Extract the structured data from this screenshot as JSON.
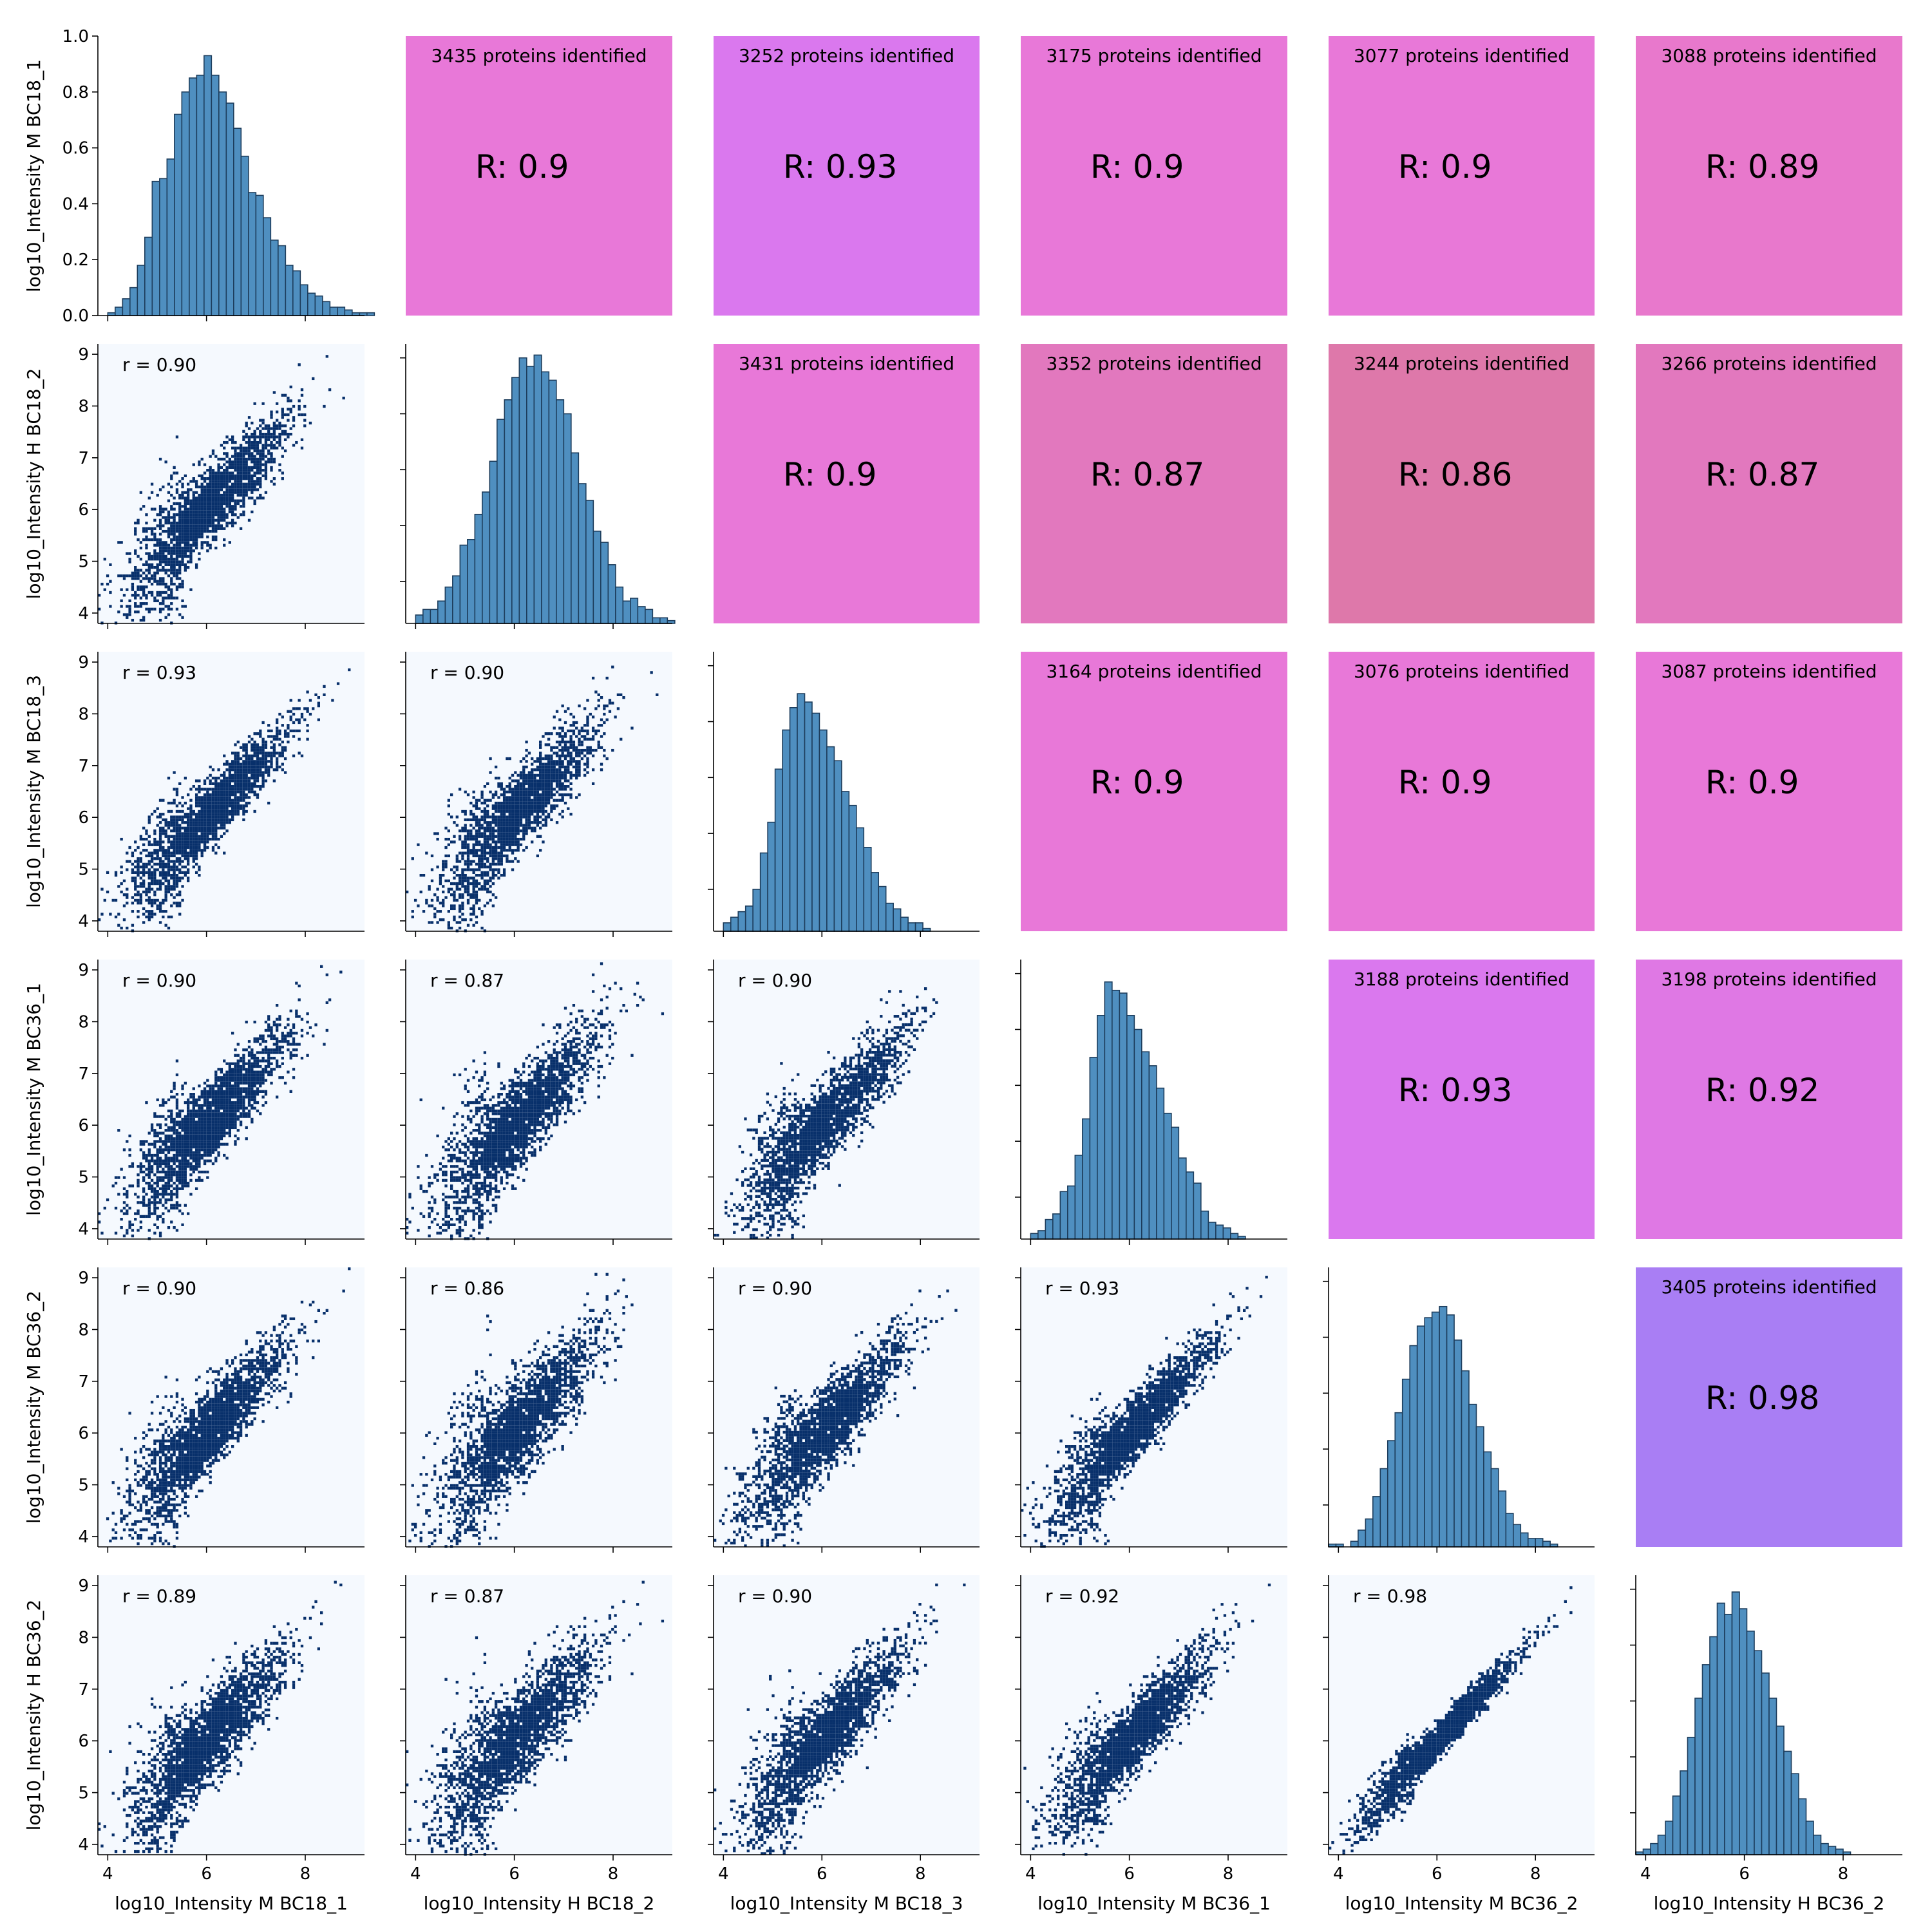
{
  "chart_data": {
    "type": "pairplot",
    "variables": [
      "log10_Intensity M BC18_1",
      "log10_Intensity H BC18_2",
      "log10_Intensity M BC18_3",
      "log10_Intensity M BC36_1",
      "log10_Intensity M BC36_2",
      "log10_Intensity H BC36_2"
    ],
    "column_labels": [
      "log10_Intensity M BC18_1",
      "log10_Intensity H BC18_2",
      "log10_Intensity M BC18_3",
      "log10_Intensity M BC36_1",
      "log10_Intensity M BC36_2",
      "log10_Intensity H BC36_2"
    ],
    "row_labels": [
      "log10_Intensity M BC18_1",
      "log10_Intensity H BC18_2",
      "log10_Intensity M BC18_3",
      "log10_Intensity M BC36_1",
      "log10_Intensity M BC36_2",
      "log10_Intensity H BC36_2"
    ],
    "axis_range": [
      3.8,
      9.2
    ],
    "x_ticks": [
      4,
      6,
      8
    ],
    "y_ticks": [
      4,
      5,
      6,
      7,
      8,
      9
    ],
    "first_hist_y_ticks": [
      "0.0",
      "0.2",
      "0.4",
      "0.6",
      "0.8",
      "1.0"
    ],
    "first_hist_ylim": [
      0,
      1.0
    ],
    "correlation": [
      [
        null,
        0.9,
        0.93,
        0.9,
        0.9,
        0.89
      ],
      [
        0.9,
        null,
        0.9,
        0.87,
        0.86,
        0.87
      ],
      [
        0.93,
        0.9,
        null,
        0.9,
        0.9,
        0.9
      ],
      [
        0.9,
        0.87,
        0.9,
        null,
        0.93,
        0.92
      ],
      [
        0.9,
        0.86,
        0.9,
        0.93,
        null,
        0.98
      ],
      [
        0.89,
        0.87,
        0.9,
        0.92,
        0.98,
        null
      ]
    ],
    "lower_labels": [
      [
        "",
        "",
        "",
        "",
        "",
        ""
      ],
      [
        "r = 0.90",
        "",
        "",
        "",
        "",
        ""
      ],
      [
        "r = 0.93",
        "r = 0.90",
        "",
        "",
        "",
        ""
      ],
      [
        "r = 0.90",
        "r = 0.87",
        "r = 0.90",
        "",
        "",
        ""
      ],
      [
        "r = 0.90",
        "r = 0.86",
        "r = 0.90",
        "r = 0.93",
        "",
        ""
      ],
      [
        "r = 0.89",
        "r = 0.87",
        "r = 0.90",
        "r = 0.92",
        "r = 0.98",
        ""
      ]
    ],
    "upper_r_labels": [
      [
        "",
        "R: 0.9",
        "R: 0.93",
        "R: 0.9",
        "R: 0.9",
        "R: 0.89"
      ],
      [
        "",
        "",
        "R: 0.9",
        "R: 0.87",
        "R: 0.86",
        "R: 0.87"
      ],
      [
        "",
        "",
        "",
        "R: 0.9",
        "R: 0.9",
        "R: 0.9"
      ],
      [
        "",
        "",
        "",
        "",
        "R: 0.93",
        "R: 0.92"
      ],
      [
        "",
        "",
        "",
        "",
        "",
        "R: 0.98"
      ],
      [
        "",
        "",
        "",
        "",
        "",
        ""
      ]
    ],
    "upper_counts": [
      [
        "",
        "3435 proteins identified",
        "3252 proteins identified",
        "3175 proteins identified",
        "3077 proteins identified",
        "3088 proteins identified"
      ],
      [
        "",
        "",
        "3431 proteins identified",
        "3352 proteins identified",
        "3244 proteins identified",
        "3266 proteins identified"
      ],
      [
        "",
        "",
        "",
        "3164 proteins identified",
        "3076 proteins identified",
        "3087 proteins identified"
      ],
      [
        "",
        "",
        "",
        "",
        "3188 proteins identified",
        "3198 proteins identified"
      ],
      [
        "",
        "",
        "",
        "",
        "",
        "3405 proteins identified"
      ],
      [
        "",
        "",
        "",
        "",
        "",
        ""
      ]
    ],
    "upper_colors": [
      [
        null,
        "#e878d8",
        "#da78ee",
        "#e878d8",
        "#e878d8",
        "#e878cc"
      ],
      [
        null,
        null,
        "#e878d8",
        "#e278be",
        "#de78aa",
        "#e278be"
      ],
      [
        null,
        null,
        null,
        "#e878d8",
        "#e878d8",
        "#e878d8"
      ],
      [
        null,
        null,
        null,
        null,
        "#da78ee",
        "#df78e4"
      ],
      [
        null,
        null,
        null,
        null,
        null,
        "#a97ef4"
      ],
      [
        null,
        null,
        null,
        null,
        null,
        null
      ]
    ],
    "histograms": [
      {
        "start": 4.0,
        "width": 0.15,
        "values": [
          0.01,
          0.03,
          0.06,
          0.1,
          0.18,
          0.28,
          0.48,
          0.49,
          0.56,
          0.72,
          0.8,
          0.85,
          0.86,
          0.93,
          0.86,
          0.8,
          0.76,
          0.67,
          0.57,
          0.44,
          0.43,
          0.35,
          0.27,
          0.25,
          0.18,
          0.16,
          0.11,
          0.08,
          0.07,
          0.05,
          0.03,
          0.03,
          0.02,
          0.01,
          0.01,
          0.01,
          0.0
        ]
      },
      {
        "start": 4.0,
        "width": 0.15,
        "values": [
          0.03,
          0.05,
          0.05,
          0.08,
          0.13,
          0.17,
          0.28,
          0.3,
          0.39,
          0.47,
          0.58,
          0.73,
          0.8,
          0.88,
          0.95,
          0.92,
          0.96,
          0.9,
          0.87,
          0.8,
          0.75,
          0.61,
          0.5,
          0.44,
          0.33,
          0.29,
          0.21,
          0.13,
          0.08,
          0.09,
          0.06,
          0.05,
          0.02,
          0.02,
          0.01,
          0.0,
          0.0
        ]
      },
      {
        "start": 4.0,
        "width": 0.15,
        "values": [
          0.03,
          0.05,
          0.07,
          0.09,
          0.15,
          0.28,
          0.39,
          0.58,
          0.72,
          0.8,
          0.85,
          0.82,
          0.78,
          0.72,
          0.66,
          0.61,
          0.5,
          0.45,
          0.37,
          0.3,
          0.21,
          0.16,
          0.1,
          0.08,
          0.05,
          0.03,
          0.03,
          0.01,
          0.0,
          0.0,
          0.0,
          0.0,
          0.0,
          0.0,
          0.0,
          0.0,
          0.0
        ]
      },
      {
        "start": 4.0,
        "width": 0.15,
        "values": [
          0.02,
          0.03,
          0.07,
          0.09,
          0.17,
          0.19,
          0.3,
          0.43,
          0.65,
          0.8,
          0.92,
          0.89,
          0.88,
          0.8,
          0.75,
          0.67,
          0.62,
          0.54,
          0.45,
          0.4,
          0.29,
          0.24,
          0.2,
          0.1,
          0.06,
          0.05,
          0.04,
          0.02,
          0.01,
          0.0,
          0.0,
          0.0,
          0.0,
          0.0,
          0.0,
          0.0,
          0.0
        ]
      },
      {
        "start": 3.8,
        "width": 0.15,
        "values": [
          0.01,
          0.01,
          0.0,
          0.02,
          0.06,
          0.1,
          0.18,
          0.28,
          0.38,
          0.48,
          0.6,
          0.72,
          0.79,
          0.82,
          0.84,
          0.86,
          0.83,
          0.74,
          0.63,
          0.51,
          0.43,
          0.34,
          0.28,
          0.2,
          0.12,
          0.08,
          0.05,
          0.03,
          0.03,
          0.02,
          0.01,
          0.0,
          0.0,
          0.0,
          0.0,
          0.0,
          0.0
        ]
      },
      {
        "start": 3.8,
        "width": 0.15,
        "values": [
          0.01,
          0.02,
          0.04,
          0.07,
          0.12,
          0.21,
          0.3,
          0.42,
          0.56,
          0.68,
          0.78,
          0.9,
          0.86,
          0.94,
          0.88,
          0.8,
          0.73,
          0.65,
          0.56,
          0.46,
          0.37,
          0.29,
          0.2,
          0.12,
          0.07,
          0.04,
          0.03,
          0.02,
          0.01,
          0.0,
          0.0,
          0.0,
          0.0,
          0.0,
          0.0,
          0.0,
          0.0
        ]
      }
    ],
    "scatter_seed": 20240611,
    "scatter_points_per_panel": 2600
  }
}
